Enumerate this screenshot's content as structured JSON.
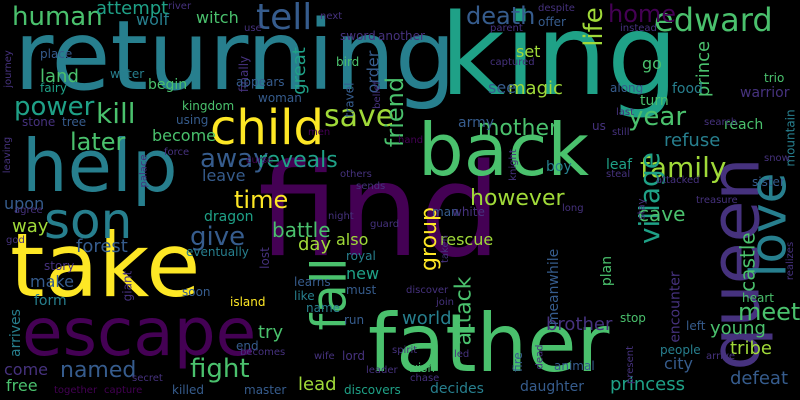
{
  "colors": {
    "background": "#000000",
    "c1": "#fde725",
    "c2": "#a0da39",
    "c3": "#4ac16d",
    "c4": "#1fa187",
    "c5": "#277f8e",
    "c6": "#365c8d",
    "c7": "#46327e",
    "c8": "#440154"
  },
  "words": [
    {
      "text": "returning",
      "color": "c5"
    },
    {
      "text": "king",
      "color": "c4"
    },
    {
      "text": "find",
      "color": "c8"
    },
    {
      "text": "take",
      "color": "c1"
    },
    {
      "text": "father",
      "color": "c3"
    },
    {
      "text": "back",
      "color": "c3"
    },
    {
      "text": "help",
      "color": "c5"
    },
    {
      "text": "escape",
      "color": "c8"
    },
    {
      "text": "child",
      "color": "c1"
    },
    {
      "text": "son",
      "color": "c5"
    },
    {
      "text": "queen",
      "color": "c7"
    },
    {
      "text": "love",
      "color": "c5"
    },
    {
      "text": "fall",
      "color": "c3"
    },
    {
      "text": "edward",
      "color": "c3"
    },
    {
      "text": "tell",
      "color": "c6"
    },
    {
      "text": "save",
      "color": "c2"
    },
    {
      "text": "human",
      "color": "c3"
    },
    {
      "text": "death",
      "color": "c6"
    },
    {
      "text": "home",
      "color": "c8"
    },
    {
      "text": "life",
      "color": "c2"
    },
    {
      "text": "power",
      "color": "c4"
    },
    {
      "text": "kill",
      "color": "c3"
    },
    {
      "text": "later",
      "color": "c3"
    },
    {
      "text": "away",
      "color": "c6"
    },
    {
      "text": "reveals",
      "color": "c4"
    },
    {
      "text": "friend",
      "color": "c3"
    },
    {
      "text": "mother",
      "color": "c3"
    },
    {
      "text": "year",
      "color": "c3"
    },
    {
      "text": "family",
      "color": "c2"
    },
    {
      "text": "village",
      "color": "c4"
    },
    {
      "text": "however",
      "color": "c2"
    },
    {
      "text": "group",
      "color": "c1"
    },
    {
      "text": "time",
      "color": "c1"
    },
    {
      "text": "give",
      "color": "c6"
    },
    {
      "text": "battle",
      "color": "c3"
    },
    {
      "text": "attack",
      "color": "c3"
    },
    {
      "text": "castle",
      "color": "c3"
    },
    {
      "text": "named",
      "color": "c6"
    },
    {
      "text": "fight",
      "color": "c3"
    },
    {
      "text": "world",
      "color": "c5"
    },
    {
      "text": "meet",
      "color": "c3"
    },
    {
      "text": "upon",
      "color": "c6"
    },
    {
      "text": "way",
      "color": "c2"
    },
    {
      "text": "forest",
      "color": "c6"
    },
    {
      "text": "rescue",
      "color": "c2"
    },
    {
      "text": "cave",
      "color": "c3"
    },
    {
      "text": "refuse",
      "color": "c5"
    },
    {
      "text": "magic",
      "color": "c2"
    },
    {
      "text": "land",
      "color": "c3"
    },
    {
      "text": "wolf",
      "color": "c5"
    },
    {
      "text": "attempt",
      "color": "c4"
    },
    {
      "text": "witch",
      "color": "c3"
    },
    {
      "text": "also",
      "color": "c2"
    },
    {
      "text": "prince",
      "color": "c3"
    },
    {
      "text": "princess",
      "color": "c4"
    },
    {
      "text": "defeat",
      "color": "c6"
    },
    {
      "text": "brother",
      "color": "c7"
    },
    {
      "text": "young",
      "color": "c3"
    },
    {
      "text": "tribe",
      "color": "c2"
    },
    {
      "text": "lead",
      "color": "c2"
    },
    {
      "text": "free",
      "color": "c3"
    },
    {
      "text": "come",
      "color": "c7"
    },
    {
      "text": "arrives",
      "color": "c5"
    },
    {
      "text": "become",
      "color": "c3"
    },
    {
      "text": "leave",
      "color": "c6"
    },
    {
      "text": "make",
      "color": "c6"
    },
    {
      "text": "try",
      "color": "c3"
    },
    {
      "text": "day",
      "color": "c2"
    },
    {
      "text": "new",
      "color": "c4"
    },
    {
      "text": "set",
      "color": "c2"
    },
    {
      "text": "see",
      "color": "c6"
    },
    {
      "text": "go",
      "color": "c3"
    },
    {
      "text": "plan",
      "color": "c3"
    },
    {
      "text": "city",
      "color": "c6"
    },
    {
      "text": "encounter",
      "color": "c7"
    },
    {
      "text": "meanwhile",
      "color": "c6"
    },
    {
      "text": "order",
      "color": "c6"
    },
    {
      "text": "great",
      "color": "c4"
    },
    {
      "text": "army",
      "color": "c6"
    },
    {
      "text": "begin",
      "color": "c3"
    },
    {
      "text": "kingdom",
      "color": "c3"
    },
    {
      "text": "dragon",
      "color": "c4"
    },
    {
      "text": "story",
      "color": "c7"
    },
    {
      "text": "form",
      "color": "c5"
    },
    {
      "text": "island",
      "color": "c1"
    },
    {
      "text": "soon",
      "color": "c6"
    },
    {
      "text": "end",
      "color": "c6"
    },
    {
      "text": "killed",
      "color": "c6"
    },
    {
      "text": "master",
      "color": "c6"
    },
    {
      "text": "discovers",
      "color": "c4"
    },
    {
      "text": "decides",
      "color": "c5"
    },
    {
      "text": "daughter",
      "color": "c6"
    },
    {
      "text": "run",
      "color": "c6"
    },
    {
      "text": "lord",
      "color": "c7"
    },
    {
      "text": "royal",
      "color": "c5"
    },
    {
      "text": "must",
      "color": "c6"
    },
    {
      "text": "learns",
      "color": "c6"
    },
    {
      "text": "like",
      "color": "c5"
    },
    {
      "text": "lost",
      "color": "c7"
    },
    {
      "text": "eventually",
      "color": "c5"
    },
    {
      "text": "giant",
      "color": "c7"
    },
    {
      "text": "boy",
      "color": "c5"
    },
    {
      "text": "leaf",
      "color": "c4"
    },
    {
      "text": "turn",
      "color": "c3"
    },
    {
      "text": "people",
      "color": "c5"
    },
    {
      "text": "along",
      "color": "c6"
    },
    {
      "text": "food",
      "color": "c5"
    },
    {
      "text": "warrior",
      "color": "c7"
    },
    {
      "text": "reach",
      "color": "c3"
    },
    {
      "text": "sister",
      "color": "c6"
    },
    {
      "text": "heart",
      "color": "c3"
    },
    {
      "text": "stop",
      "color": "c3"
    },
    {
      "text": "left",
      "color": "c6"
    },
    {
      "text": "animal",
      "color": "c6"
    },
    {
      "text": "wish",
      "color": "c3"
    },
    {
      "text": "leader",
      "color": "c7"
    },
    {
      "text": "chase",
      "color": "c7"
    },
    {
      "text": "spirit",
      "color": "c7"
    },
    {
      "text": "fire",
      "color": "c6"
    },
    {
      "text": "dead",
      "color": "c7"
    },
    {
      "text": "wife",
      "color": "c7"
    },
    {
      "text": "secret",
      "color": "c7"
    },
    {
      "text": "together",
      "color": "c8"
    },
    {
      "text": "capture",
      "color": "c8"
    },
    {
      "text": "becomes",
      "color": "c7"
    },
    {
      "text": "name",
      "color": "c5"
    },
    {
      "text": "fairy",
      "color": "c4"
    },
    {
      "text": "place",
      "color": "c6"
    },
    {
      "text": "water",
      "color": "c5"
    },
    {
      "text": "stone",
      "color": "c7"
    },
    {
      "text": "tree",
      "color": "c6"
    },
    {
      "text": "using",
      "color": "c6"
    },
    {
      "text": "woman",
      "color": "c6"
    },
    {
      "text": "travel",
      "color": "c6"
    },
    {
      "text": "bird",
      "color": "c3"
    },
    {
      "text": "finally",
      "color": "c7"
    },
    {
      "text": "appears",
      "color": "c6"
    },
    {
      "text": "sword",
      "color": "c7"
    },
    {
      "text": "another",
      "color": "c7"
    },
    {
      "text": "offer",
      "color": "c6"
    },
    {
      "text": "despite",
      "color": "c7"
    },
    {
      "text": "instead",
      "color": "c7"
    },
    {
      "text": "parent",
      "color": "c7"
    },
    {
      "text": "captured",
      "color": "c7"
    },
    {
      "text": "trio",
      "color": "c3"
    },
    {
      "text": "search",
      "color": "c7"
    },
    {
      "text": "mountain",
      "color": "c5"
    },
    {
      "text": "snow",
      "color": "c7"
    },
    {
      "text": "treasure",
      "color": "c7"
    },
    {
      "text": "realizes",
      "color": "c7"
    },
    {
      "text": "arrive",
      "color": "c7"
    },
    {
      "text": "present",
      "color": "c7"
    },
    {
      "text": "led",
      "color": "c7"
    },
    {
      "text": "man",
      "color": "c6"
    },
    {
      "text": "white",
      "color": "c7"
    },
    {
      "text": "taken",
      "color": "c7"
    },
    {
      "text": "long",
      "color": "c7"
    },
    {
      "text": "knight",
      "color": "c7"
    },
    {
      "text": "steal",
      "color": "c7"
    },
    {
      "text": "attacked",
      "color": "c7"
    },
    {
      "text": "stay",
      "color": "c7"
    },
    {
      "text": "next",
      "color": "c7"
    },
    {
      "text": "river",
      "color": "c7"
    },
    {
      "text": "journey",
      "color": "c7"
    },
    {
      "text": "use",
      "color": "c7"
    },
    {
      "text": "palace",
      "color": "c7"
    },
    {
      "text": "force",
      "color": "c7"
    },
    {
      "text": "leaving",
      "color": "c7"
    },
    {
      "text": "god",
      "color": "c7"
    },
    {
      "text": "agree",
      "color": "c7"
    },
    {
      "text": "night",
      "color": "c7"
    },
    {
      "text": "guard",
      "color": "c7"
    },
    {
      "text": "join",
      "color": "c7"
    },
    {
      "text": "discover",
      "color": "c7"
    },
    {
      "text": "men",
      "color": "c8"
    },
    {
      "text": "hand",
      "color": "c8"
    },
    {
      "text": "curse",
      "color": "c8"
    },
    {
      "text": "sends",
      "color": "c7"
    },
    {
      "text": "others",
      "color": "c7"
    },
    {
      "text": "belief",
      "color": "c7"
    },
    {
      "text": "last",
      "color": "c7"
    },
    {
      "text": "still",
      "color": "c7"
    },
    {
      "text": "us",
      "color": "c7"
    }
  ]
}
